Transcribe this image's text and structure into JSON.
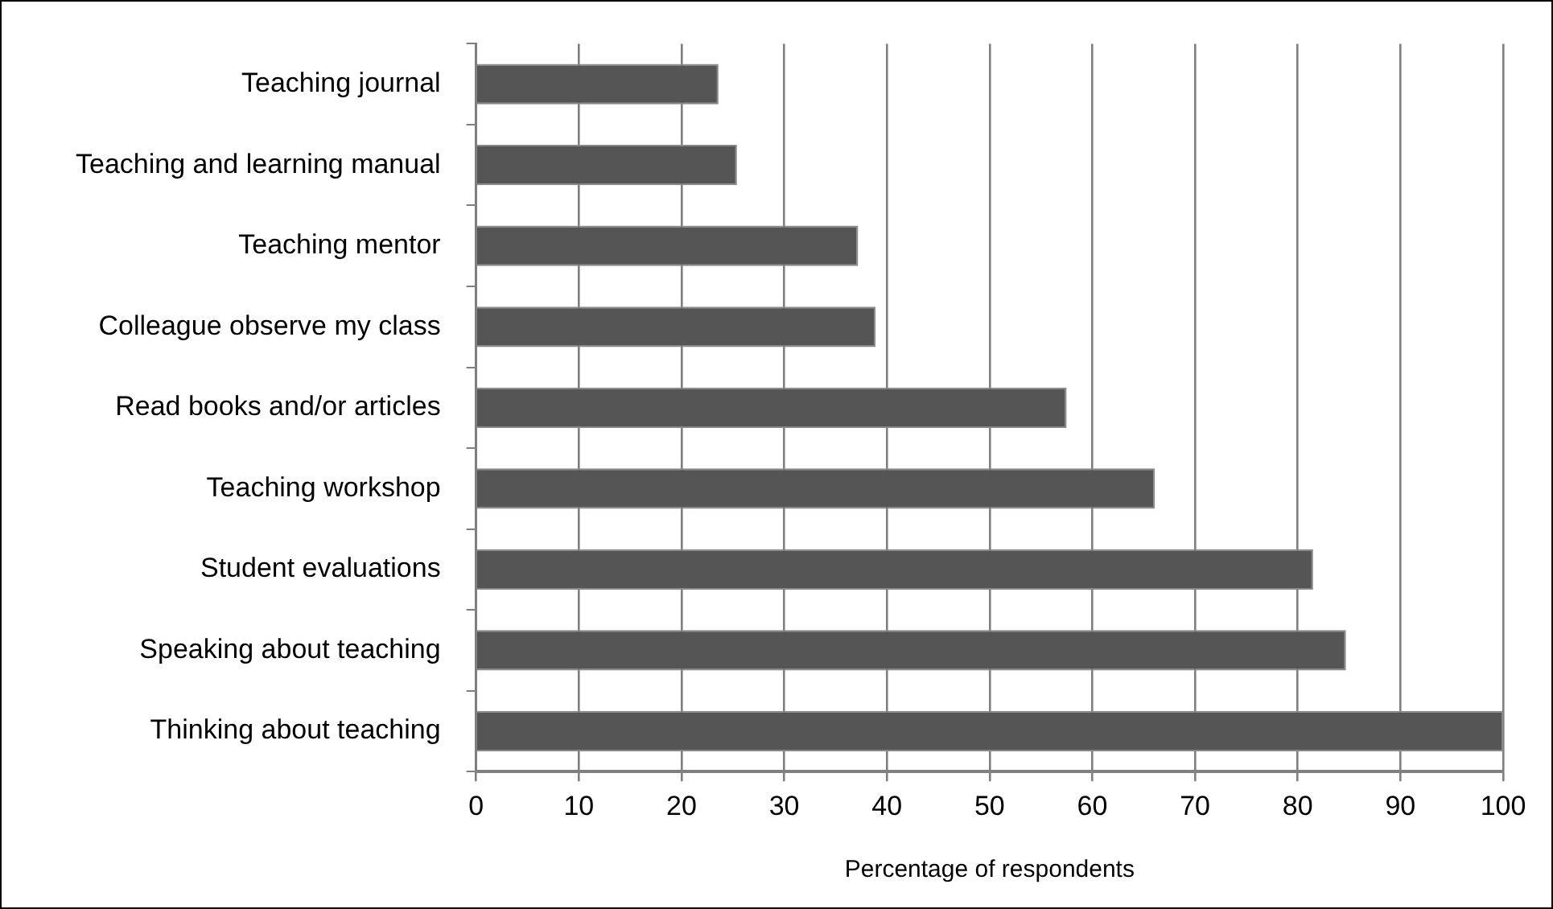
{
  "chart_data": {
    "type": "bar",
    "orientation": "horizontal",
    "xlabel": "Percentage of respondents",
    "categories": [
      "Teaching journal",
      "Teaching and learning manual",
      "Teaching mentor",
      "Colleague observe my class",
      "Read books and/or articles",
      "Teaching workshop",
      "Student evaluations",
      "Speaking about teaching",
      "Thinking about teaching"
    ],
    "values": [
      23.6,
      25.4,
      37.2,
      38.9,
      57.5,
      66.1,
      81.5,
      84.7,
      100
    ],
    "color": "#555555",
    "xlim": [
      0,
      100
    ],
    "xticks": [
      0,
      10,
      20,
      30,
      40,
      50,
      60,
      70,
      80,
      90,
      100
    ],
    "grid": "x",
    "legend": false
  }
}
